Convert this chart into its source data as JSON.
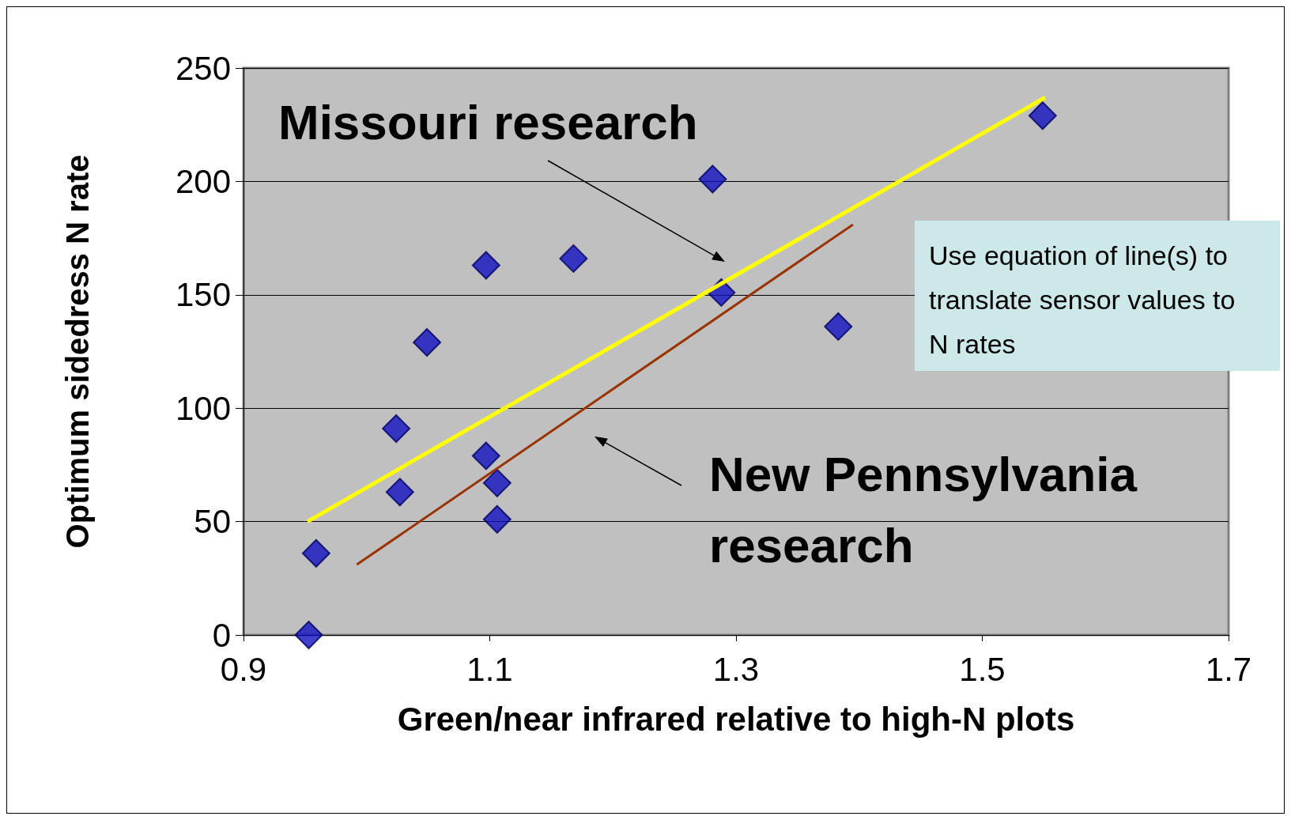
{
  "chart_data": {
    "type": "scatter",
    "xlabel": "Green/near infrared relative to high-N plots",
    "ylabel": "Optimum sidedress N rate",
    "xlim": [
      0.9,
      1.7
    ],
    "xticks": [
      0.9,
      1.1,
      1.3,
      1.5,
      1.7
    ],
    "ylim": [
      0,
      250
    ],
    "yticks": [
      0,
      50,
      100,
      150,
      200,
      250
    ],
    "grid": "y",
    "legend": false,
    "marker": "diamond",
    "series": [
      {
        "color": "#1010c0",
        "x": [
          0.953,
          0.959,
          1.024,
          1.027,
          1.049,
          1.097,
          1.097,
          1.106,
          1.106,
          1.168,
          1.281,
          1.288,
          1.383,
          1.549
        ],
        "values": [
          0,
          36,
          91,
          63,
          129,
          163,
          79,
          67,
          51,
          166,
          201,
          151,
          136,
          229
        ]
      },
      {
        "type": "line",
        "marker": "none",
        "name": "Missouri research",
        "color": "#ffff00",
        "x": [
          0.952,
          1.551
        ],
        "values": [
          50,
          237
        ]
      },
      {
        "type": "line",
        "marker": "none",
        "name": "New Pennsylvania research",
        "color": "#993300",
        "x": [
          0.992,
          1.395
        ],
        "values": [
          31,
          181
        ]
      }
    ],
    "annotations": [
      "Use equation of line(s) to translate sensor values to N rates"
    ]
  }
}
